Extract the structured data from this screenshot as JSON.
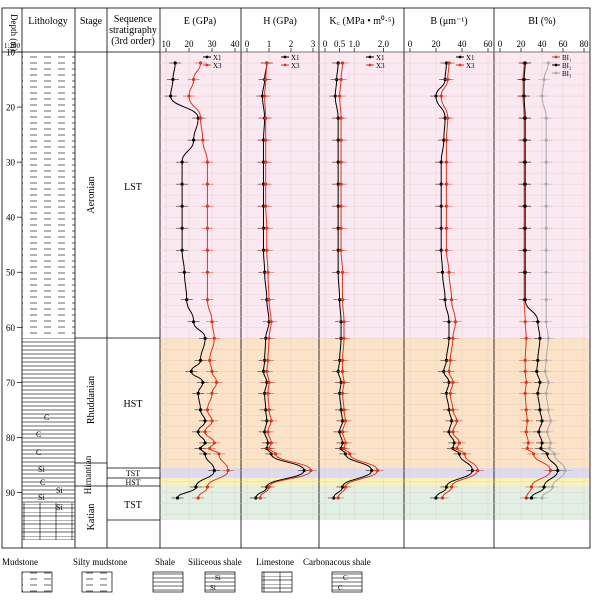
{
  "headers": {
    "depth": "Depth (m)",
    "scale": "1:200",
    "lithology": "Lithology",
    "stage": "Stage",
    "sequence": [
      "Sequence",
      "stratigraphy",
      "(3rd order)"
    ],
    "E": "E (GPa)",
    "H": "H (GPa)",
    "Kc": "K꜀ (MPa • m⁰·⁵)",
    "B": "B (μm⁻¹)",
    "BI": "BI (%)"
  },
  "stages": [
    "Aeronian",
    "Rhuddanian",
    "Hirnantian",
    "Katian"
  ],
  "sequences": [
    "LST",
    "HST",
    "TST",
    "HST",
    "TST"
  ],
  "legend": [
    "Mudstone",
    "Silty mudstone",
    "Shale",
    "Siliceous shale",
    "Limestone",
    "Carbonacous shale"
  ],
  "litho_symbols": {
    "carbon": "C",
    "silica": "Si"
  },
  "colors": {
    "X1": "#000000",
    "X3": "#d9361e",
    "BI3": "#aaaaaa",
    "band_LST": "#fbe9f2",
    "band_HST": "#fbe3c8",
    "band_TST_upper": "#dcdcf0",
    "band_HST_thin": "#fbf1b8",
    "band_TST_lower": "#e1f0e3"
  },
  "chart_data": [
    {
      "type": "line",
      "xlabel": "E (GPa)",
      "xlim": [
        10,
        40
      ],
      "xticks": [
        10,
        20,
        30,
        40
      ],
      "ylim": [
        10,
        95
      ],
      "yticks": [
        10,
        20,
        30,
        40,
        50,
        60,
        70,
        80,
        90
      ],
      "series": [
        {
          "name": "X1",
          "x": [
            14,
            13,
            12,
            24,
            22,
            17,
            17,
            17,
            17,
            17,
            18,
            19,
            22,
            27,
            25,
            21,
            26,
            24,
            25,
            27,
            24,
            27,
            25,
            27,
            31,
            23,
            15
          ],
          "y": [
            12,
            15,
            18,
            22,
            26,
            30,
            34,
            38,
            42,
            46,
            50,
            55,
            59,
            62,
            66,
            68,
            70,
            72,
            75,
            77,
            79,
            81,
            82,
            83,
            86,
            89,
            91
          ]
        },
        {
          "name": "X3",
          "x": [
            25,
            22,
            20,
            25,
            26,
            28,
            28,
            28,
            28,
            28,
            28,
            28,
            30,
            31,
            29,
            30,
            32,
            30,
            28,
            30,
            27,
            31,
            29,
            33,
            37,
            28,
            24
          ],
          "y": [
            12,
            15,
            18,
            22,
            26,
            30,
            34,
            38,
            42,
            46,
            50,
            55,
            59,
            62,
            66,
            68,
            70,
            72,
            75,
            77,
            79,
            81,
            82,
            83,
            86,
            89,
            91
          ]
        }
      ]
    },
    {
      "type": "line",
      "xlabel": "H (GPa)",
      "xlim": [
        0,
        3
      ],
      "xticks": [
        0,
        1,
        2,
        3
      ],
      "ylim": [
        10,
        95
      ],
      "yticks": [
        10,
        20,
        30,
        40,
        50,
        60,
        70,
        80,
        90
      ],
      "series": [
        {
          "name": "X1",
          "x": [
            0.9,
            0.8,
            0.7,
            0.8,
            0.75,
            0.75,
            0.75,
            0.75,
            0.75,
            0.75,
            0.8,
            0.9,
            1.0,
            0.85,
            0.8,
            0.75,
            0.9,
            0.8,
            0.85,
            0.9,
            0.8,
            0.95,
            0.9,
            1.1,
            2.6,
            0.9,
            0.4
          ],
          "y": [
            12,
            15,
            18,
            22,
            26,
            30,
            34,
            38,
            42,
            46,
            50,
            55,
            59,
            62,
            66,
            68,
            70,
            72,
            75,
            77,
            79,
            81,
            82,
            83,
            86,
            89,
            91
          ]
        },
        {
          "name": "X3",
          "x": [
            0.9,
            0.85,
            0.8,
            0.85,
            0.85,
            0.85,
            0.85,
            0.85,
            0.9,
            0.9,
            0.95,
            1.0,
            1.1,
            1.0,
            0.95,
            0.9,
            1.0,
            0.95,
            1.0,
            1.1,
            0.95,
            1.1,
            1.0,
            1.3,
            2.9,
            1.0,
            0.6
          ],
          "y": [
            12,
            15,
            18,
            22,
            26,
            30,
            34,
            38,
            42,
            46,
            50,
            55,
            59,
            62,
            66,
            68,
            70,
            72,
            75,
            77,
            79,
            81,
            82,
            83,
            86,
            89,
            91
          ]
        }
      ]
    },
    {
      "type": "line",
      "xlabel": "K꜀ (MPa • m⁰·⁵)",
      "xlim": [
        0,
        2.5
      ],
      "xticks": [
        0,
        0.5,
        1.0,
        2.0
      ],
      "xtick_labels": [
        "0",
        "0.5",
        "1.0",
        "2.0"
      ],
      "ylim": [
        10,
        95
      ],
      "yticks": [
        10,
        20,
        30,
        40,
        50,
        60,
        70,
        80,
        90
      ],
      "series": [
        {
          "name": "X1",
          "x": [
            0.45,
            0.4,
            0.35,
            0.45,
            0.45,
            0.45,
            0.45,
            0.45,
            0.45,
            0.45,
            0.45,
            0.5,
            0.55,
            0.55,
            0.5,
            0.45,
            0.55,
            0.5,
            0.55,
            0.6,
            0.5,
            0.6,
            0.55,
            0.7,
            1.6,
            0.6,
            0.3
          ],
          "y": [
            12,
            15,
            18,
            22,
            26,
            30,
            34,
            38,
            42,
            46,
            50,
            55,
            59,
            62,
            66,
            68,
            70,
            72,
            75,
            77,
            79,
            81,
            82,
            83,
            86,
            89,
            91
          ]
        },
        {
          "name": "X3",
          "x": [
            0.6,
            0.55,
            0.5,
            0.55,
            0.55,
            0.55,
            0.55,
            0.55,
            0.55,
            0.55,
            0.6,
            0.6,
            0.65,
            0.65,
            0.6,
            0.6,
            0.65,
            0.6,
            0.65,
            0.7,
            0.6,
            0.7,
            0.65,
            0.85,
            1.8,
            0.7,
            0.45
          ],
          "y": [
            12,
            15,
            18,
            22,
            26,
            30,
            34,
            38,
            42,
            46,
            50,
            55,
            59,
            62,
            66,
            68,
            70,
            72,
            75,
            77,
            79,
            81,
            82,
            83,
            86,
            89,
            91
          ]
        }
      ]
    },
    {
      "type": "line",
      "xlabel": "B (μm⁻¹)",
      "xlim": [
        0,
        60
      ],
      "xticks": [
        0,
        20,
        40,
        60
      ],
      "ylim": [
        10,
        95
      ],
      "yticks": [
        10,
        20,
        30,
        40,
        50,
        60,
        70,
        80,
        90
      ],
      "series": [
        {
          "name": "X1",
          "x": [
            28,
            27,
            20,
            27,
            26,
            24,
            24,
            24,
            24,
            24,
            25,
            27,
            30,
            30,
            28,
            26,
            30,
            28,
            30,
            32,
            30,
            34,
            33,
            38,
            48,
            28,
            20
          ],
          "y": [
            12,
            15,
            18,
            22,
            26,
            30,
            34,
            38,
            42,
            46,
            50,
            55,
            59,
            62,
            66,
            68,
            70,
            72,
            75,
            77,
            79,
            81,
            82,
            83,
            86,
            89,
            91
          ]
        },
        {
          "name": "X3",
          "x": [
            30,
            29,
            24,
            29,
            28,
            28,
            28,
            28,
            28,
            28,
            30,
            32,
            35,
            33,
            31,
            30,
            33,
            31,
            33,
            36,
            33,
            38,
            36,
            42,
            52,
            32,
            25
          ],
          "y": [
            12,
            15,
            18,
            22,
            26,
            30,
            34,
            38,
            42,
            46,
            50,
            55,
            59,
            62,
            66,
            68,
            70,
            72,
            75,
            77,
            79,
            81,
            82,
            83,
            86,
            89,
            91
          ]
        }
      ]
    },
    {
      "type": "line",
      "xlabel": "BI (%)",
      "xlim": [
        0,
        80
      ],
      "xticks": [
        0,
        20,
        40,
        60,
        80
      ],
      "ylim": [
        10,
        95
      ],
      "yticks": [
        10,
        20,
        30,
        40,
        50,
        60,
        70,
        80,
        90
      ],
      "series": [
        {
          "name": "BI₁",
          "x": [
            23,
            22,
            22,
            23,
            23,
            23,
            23,
            23,
            23,
            23,
            23,
            23,
            24,
            25,
            24,
            24,
            25,
            24,
            25,
            26,
            25,
            27,
            26,
            32,
            48,
            30,
            25
          ],
          "y": [
            12,
            15,
            18,
            22,
            26,
            30,
            34,
            38,
            42,
            46,
            50,
            55,
            59,
            62,
            66,
            68,
            70,
            72,
            75,
            77,
            79,
            81,
            82,
            83,
            86,
            89,
            91
          ]
        },
        {
          "name": "BI₂",
          "x": [
            24,
            23,
            23,
            24,
            24,
            24,
            24,
            24,
            24,
            24,
            24,
            24,
            36,
            38,
            36,
            35,
            38,
            36,
            38,
            40,
            37,
            40,
            39,
            45,
            55,
            42,
            30
          ],
          "y": [
            12,
            15,
            18,
            22,
            26,
            30,
            34,
            38,
            42,
            46,
            50,
            55,
            59,
            62,
            66,
            68,
            70,
            72,
            75,
            77,
            79,
            81,
            82,
            83,
            86,
            89,
            91
          ]
        },
        {
          "name": "BI₃",
          "x": [
            46,
            42,
            40,
            44,
            44,
            44,
            44,
            44,
            44,
            44,
            44,
            44,
            44,
            46,
            44,
            43,
            46,
            44,
            46,
            48,
            45,
            48,
            47,
            52,
            62,
            50,
            40
          ],
          "y": [
            12,
            15,
            18,
            22,
            26,
            30,
            34,
            38,
            42,
            46,
            50,
            55,
            59,
            62,
            66,
            68,
            70,
            72,
            75,
            77,
            79,
            81,
            82,
            83,
            86,
            89,
            91
          ]
        }
      ]
    }
  ]
}
